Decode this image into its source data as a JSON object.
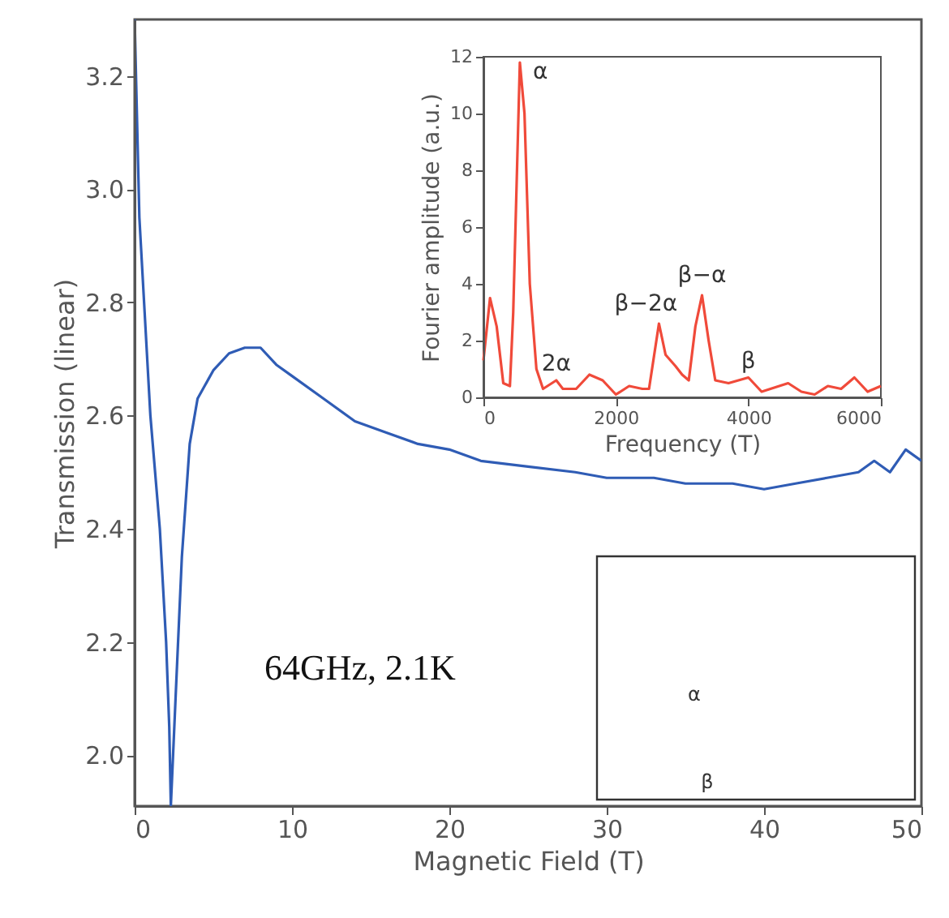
{
  "chart_data": [
    {
      "type": "line",
      "xlabel": "Magnetic Field (T)",
      "ylabel": "Transmission (linear)",
      "xlim": [
        0,
        50
      ],
      "ylim": [
        1.91,
        3.3
      ],
      "xticks": [
        0,
        10,
        20,
        30,
        40,
        50
      ],
      "yticks": [
        {
          "value": 2.0,
          "label": "2.0"
        },
        2.2,
        2.4,
        2.6,
        2.8,
        {
          "value": 3.0,
          "label": "3.0"
        },
        3.2
      ],
      "grid": false,
      "annotations": [
        "64GHz, 2.1K"
      ],
      "series": [
        {
          "color": "#2f5cb5",
          "x": [
            0,
            0.3,
            1,
            1.6,
            2.0,
            2.2,
            2.3,
            2.6,
            3,
            3.5,
            4,
            5,
            6,
            7,
            8,
            9,
            10,
            12,
            14,
            16,
            18,
            20,
            22,
            25,
            28,
            30,
            33,
            35,
            38,
            40,
            42,
            44,
            46,
            47,
            48,
            49,
            50
          ],
          "values": [
            3.3,
            2.95,
            2.6,
            2.4,
            2.2,
            2.05,
            1.91,
            2.1,
            2.35,
            2.55,
            2.63,
            2.68,
            2.71,
            2.72,
            2.72,
            2.69,
            2.67,
            2.63,
            2.59,
            2.57,
            2.55,
            2.54,
            2.52,
            2.51,
            2.5,
            2.49,
            2.49,
            2.48,
            2.48,
            2.47,
            2.48,
            2.49,
            2.5,
            2.52,
            2.5,
            2.54,
            2.52
          ]
        }
      ]
    },
    {
      "type": "line",
      "xlabel": "Frequency (T)",
      "ylabel": "Fourier amplitude (a.u.)",
      "xlim": [
        0,
        6000
      ],
      "ylim": [
        0,
        12
      ],
      "xticks": [
        0,
        2000,
        4000,
        6000
      ],
      "yticks": [
        0,
        2,
        4,
        6,
        8,
        10,
        12
      ],
      "grid": false,
      "annotations": [
        {
          "text": "α",
          "x": 550,
          "y": 11.8
        },
        {
          "text": "2α",
          "x": 1100,
          "y": 0.6
        },
        {
          "text": "β−2α",
          "x": 2650,
          "y": 2.6
        },
        {
          "text": "β−α",
          "x": 3300,
          "y": 3.6
        },
        {
          "text": "β",
          "x": 4000,
          "y": 0.7
        }
      ],
      "series": [
        {
          "color": "#f04a3a",
          "x": [
            0,
            100,
            200,
            300,
            400,
            450,
            550,
            620,
            700,
            800,
            900,
            1100,
            1200,
            1400,
            1600,
            1800,
            2000,
            2200,
            2400,
            2500,
            2650,
            2750,
            2900,
            3000,
            3100,
            3200,
            3300,
            3400,
            3500,
            3700,
            4000,
            4200,
            4600,
            4800,
            5000,
            5200,
            5400,
            5600,
            5800,
            6000
          ],
          "values": [
            1.3,
            3.5,
            2.5,
            0.5,
            0.4,
            3,
            11.8,
            10,
            4,
            1,
            0.3,
            0.6,
            0.3,
            0.3,
            0.8,
            0.6,
            0.1,
            0.4,
            0.3,
            0.3,
            2.6,
            1.5,
            1.1,
            0.8,
            0.6,
            2.5,
            3.6,
            2,
            0.6,
            0.5,
            0.7,
            0.2,
            0.5,
            0.2,
            0.1,
            0.4,
            0.3,
            0.7,
            0.2,
            0.4
          ]
        }
      ]
    },
    {
      "type": "other",
      "annotations": [
        "α",
        "β"
      ]
    }
  ]
}
